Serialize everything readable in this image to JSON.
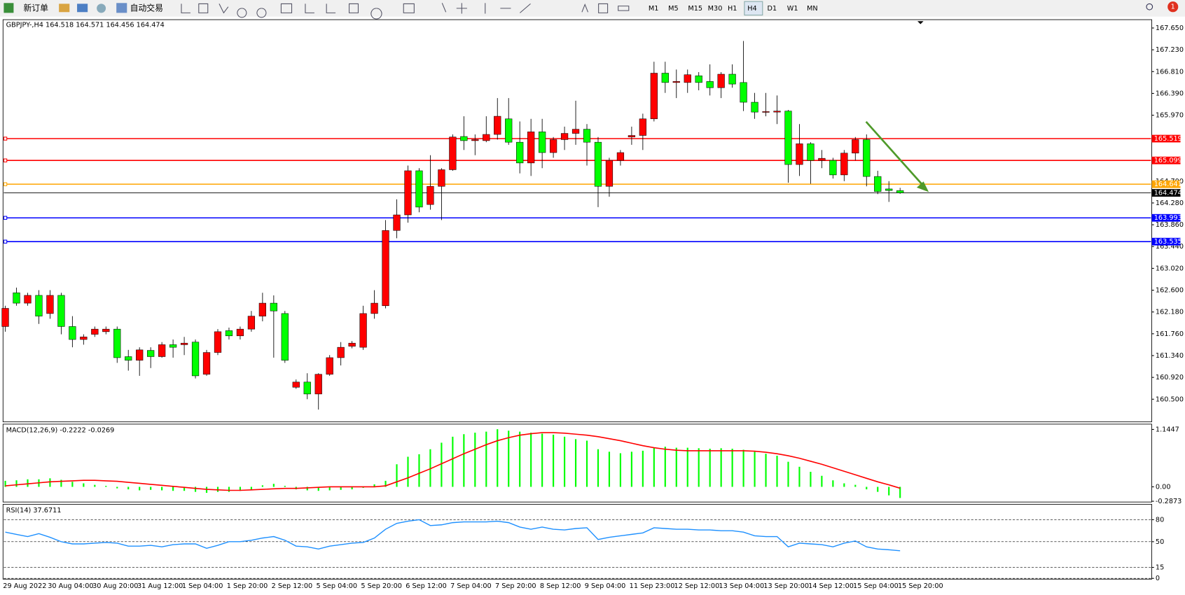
{
  "toolbar": {
    "order": "新订单",
    "autotrade": "自动交易",
    "timeframes": [
      "M1",
      "M5",
      "M15",
      "M30",
      "H1",
      "H4",
      "D1",
      "W1",
      "MN"
    ],
    "active": "H4",
    "badge": 1
  },
  "chart_data": [
    {
      "type": "candlestick",
      "symbol": "GBPJPY-,H4",
      "up_color": "#ff0000",
      "down_color": "#00ff00",
      "categories": [
        "29 Aug 2022",
        null,
        null,
        null,
        "30 Aug 04:00",
        null,
        null,
        null,
        "30 Aug 20:00",
        null,
        null,
        null,
        "31 Aug 12:00",
        null,
        null,
        null,
        "1 Sep 04:00",
        null,
        null,
        null,
        "1 Sep 20:00",
        null,
        null,
        null,
        "2 Sep 12:00",
        null,
        null,
        null,
        "5 Sep 04:00",
        null,
        null,
        null,
        "5 Sep 20:00",
        null,
        null,
        null,
        "6 Sep 12:00",
        null,
        null,
        null,
        "7 Sep 04:00",
        null,
        null,
        null,
        "7 Sep 20:00",
        null,
        null,
        null,
        "8 Sep 12:00",
        null,
        null,
        null,
        "9 Sep 04:00",
        null,
        null,
        null,
        "11 Sep 23:00",
        null,
        null,
        null,
        "12 Sep 12:00",
        null,
        null,
        null,
        "13 Sep 04:00",
        null,
        null,
        null,
        "13 Sep 20:00",
        null,
        null,
        null,
        "14 Sep 12:00",
        null,
        null,
        null,
        "15 Sep 04:00",
        null,
        null,
        null,
        "15 Sep 20:00"
      ],
      "open": [
        161.9,
        162.55,
        162.35,
        162.5,
        162.15,
        162.5,
        161.9,
        161.65,
        161.75,
        161.8,
        161.85,
        161.32,
        161.25,
        161.44,
        161.32,
        161.55,
        161.55,
        161.6,
        160.98,
        161.4,
        161.82,
        161.72,
        161.85,
        162.1,
        162.35,
        162.15,
        160.73,
        160.83,
        160.6,
        160.98,
        161.3,
        161.52,
        161.5,
        162.15,
        162.3,
        163.75,
        164.05,
        164.9,
        164.25,
        164.6,
        164.92,
        165.56,
        165.48,
        165.48,
        165.6,
        165.9,
        165.45,
        165.05,
        165.65,
        165.25,
        165.5,
        165.62,
        165.7,
        165.45,
        164.6,
        165.1,
        165.55,
        165.58,
        165.9,
        166.78,
        166.6,
        166.6,
        166.73,
        166.62,
        166.5,
        166.76,
        166.6,
        166.22,
        166.03,
        166.03,
        166.05,
        165.02,
        165.42,
        165.1,
        165.1,
        164.82,
        165.24,
        165.5,
        164.79,
        164.55,
        164.518
      ],
      "high": [
        162.3,
        162.65,
        162.55,
        162.6,
        162.6,
        162.55,
        162.1,
        161.75,
        161.9,
        161.9,
        161.9,
        161.45,
        161.5,
        161.5,
        161.6,
        161.65,
        161.7,
        161.65,
        161.45,
        161.85,
        161.88,
        161.9,
        162.2,
        162.55,
        162.5,
        162.2,
        160.88,
        161.0,
        161.0,
        161.35,
        161.6,
        161.62,
        162.3,
        162.6,
        163.95,
        164.35,
        165.0,
        164.95,
        165.2,
        164.95,
        165.6,
        165.95,
        165.6,
        165.95,
        166.3,
        166.3,
        165.85,
        165.9,
        165.9,
        165.55,
        165.75,
        166.25,
        165.8,
        165.55,
        165.15,
        165.3,
        165.75,
        166.0,
        167.0,
        167.0,
        166.85,
        166.85,
        166.8,
        166.95,
        166.8,
        166.95,
        167.4,
        166.4,
        166.4,
        166.35,
        166.07,
        165.8,
        165.45,
        165.3,
        165.15,
        165.3,
        165.55,
        165.6,
        164.9,
        164.7,
        164.571
      ],
      "low": [
        161.8,
        162.3,
        162.3,
        161.95,
        162.05,
        161.75,
        161.5,
        161.55,
        161.7,
        161.75,
        161.2,
        161.05,
        160.95,
        161.1,
        161.3,
        161.3,
        161.35,
        160.9,
        160.95,
        161.35,
        161.65,
        161.65,
        161.8,
        162.0,
        161.3,
        161.2,
        160.7,
        160.5,
        160.3,
        160.95,
        161.15,
        161.48,
        161.45,
        162.05,
        162.25,
        163.6,
        163.9,
        164.1,
        164.15,
        163.95,
        164.9,
        165.3,
        165.2,
        165.45,
        165.5,
        165.4,
        164.85,
        164.8,
        164.95,
        165.15,
        165.3,
        165.4,
        165.0,
        164.2,
        164.4,
        165.0,
        165.4,
        165.3,
        165.85,
        166.4,
        166.3,
        166.4,
        166.45,
        166.35,
        166.3,
        166.5,
        166.05,
        165.9,
        165.95,
        165.8,
        164.67,
        164.8,
        164.65,
        164.95,
        164.75,
        164.7,
        165.1,
        164.6,
        164.45,
        164.3,
        164.456
      ],
      "close": [
        162.25,
        162.35,
        162.5,
        162.1,
        162.5,
        161.9,
        161.65,
        161.7,
        161.85,
        161.85,
        161.3,
        161.25,
        161.45,
        161.32,
        161.55,
        161.5,
        161.58,
        160.95,
        161.4,
        161.8,
        161.72,
        161.85,
        162.1,
        162.35,
        162.2,
        161.25,
        160.83,
        160.6,
        160.98,
        161.3,
        161.5,
        161.58,
        162.15,
        162.35,
        163.75,
        164.05,
        164.9,
        164.2,
        164.6,
        164.92,
        165.55,
        165.48,
        165.5,
        165.6,
        165.95,
        165.45,
        165.05,
        165.65,
        165.25,
        165.5,
        165.62,
        165.7,
        165.45,
        164.6,
        165.1,
        165.25,
        165.58,
        165.9,
        166.78,
        166.6,
        166.62,
        166.75,
        166.6,
        166.5,
        166.76,
        166.57,
        166.22,
        166.03,
        166.04,
        166.05,
        165.02,
        165.42,
        165.1,
        165.14,
        164.82,
        165.24,
        165.5,
        164.79,
        164.5,
        164.52,
        164.474
      ],
      "ylim": [
        160.078,
        167.796
      ],
      "yticks": [
        {
          "value": 167.65,
          "label": "167.650"
        },
        {
          "value": 167.23,
          "label": "167.230"
        },
        {
          "value": 166.81,
          "label": "166.810"
        },
        {
          "value": 166.39,
          "label": "166.390"
        },
        {
          "value": 165.97,
          "label": "165.970"
        },
        {
          "value": 164.7,
          "label": "164.700"
        },
        {
          "value": 164.28,
          "label": "164.280"
        },
        {
          "value": 163.86,
          "label": "163.860"
        },
        {
          "value": 163.44,
          "label": "163.440"
        },
        {
          "value": 163.02,
          "label": "163.020"
        },
        {
          "value": 162.6,
          "label": "162.600"
        },
        {
          "value": 162.18,
          "label": "162.180"
        },
        {
          "value": 161.76,
          "label": "161.760"
        },
        {
          "value": 161.34,
          "label": "161.340"
        },
        {
          "value": 160.92,
          "label": "160.920"
        },
        {
          "value": 160.5,
          "label": "160.500"
        }
      ],
      "levels": [
        {
          "value": 165.519,
          "color": "#ff0000"
        },
        {
          "value": 165.099,
          "color": "#ff0000"
        },
        {
          "value": 164.641,
          "color": "#ffa500"
        },
        {
          "value": 163.993,
          "color": "#0000ff"
        },
        {
          "value": 163.535,
          "color": "#0000ff"
        }
      ],
      "bid": 164.474
    },
    {
      "type": "macd",
      "label": "MACD(12,26,9)",
      "color": "#00ff00",
      "signal_color": "#ff0000",
      "values": [
        0.12,
        0.13,
        0.15,
        0.15,
        0.17,
        0.14,
        0.1,
        0.07,
        0.04,
        0.02,
        -0.03,
        -0.05,
        -0.07,
        -0.06,
        -0.07,
        -0.08,
        -0.08,
        -0.1,
        -0.12,
        -0.1,
        -0.1,
        -0.08,
        -0.05,
        0.03,
        0.06,
        0.02,
        -0.05,
        -0.07,
        -0.08,
        -0.07,
        -0.06,
        -0.05,
        -0.02,
        0.05,
        0.12,
        0.45,
        0.6,
        0.65,
        0.75,
        0.88,
        1.0,
        1.05,
        1.08,
        1.1,
        1.15,
        1.12,
        1.1,
        1.08,
        1.06,
        1.04,
        1.0,
        0.95,
        0.92,
        0.75,
        0.7,
        0.67,
        0.7,
        0.72,
        0.78,
        0.8,
        0.78,
        0.78,
        0.77,
        0.76,
        0.77,
        0.76,
        0.74,
        0.7,
        0.66,
        0.62,
        0.5,
        0.4,
        0.3,
        0.22,
        0.13,
        0.07,
        0.04,
        -0.05,
        -0.1,
        -0.17,
        -0.2222
      ],
      "signal": [
        0.02,
        0.04,
        0.06,
        0.08,
        0.1,
        0.11,
        0.12,
        0.13,
        0.13,
        0.12,
        0.11,
        0.09,
        0.07,
        0.05,
        0.03,
        0.01,
        -0.01,
        -0.03,
        -0.05,
        -0.06,
        -0.07,
        -0.07,
        -0.06,
        -0.05,
        -0.04,
        -0.03,
        -0.03,
        -0.02,
        -0.01,
        0,
        0,
        0,
        0,
        0,
        0.02,
        0.1,
        0.18,
        0.27,
        0.36,
        0.46,
        0.56,
        0.66,
        0.75,
        0.84,
        0.92,
        0.98,
        1.03,
        1.06,
        1.08,
        1.08,
        1.07,
        1.05,
        1.03,
        1.0,
        0.96,
        0.92,
        0.87,
        0.82,
        0.78,
        0.75,
        0.73,
        0.72,
        0.72,
        0.72,
        0.72,
        0.72,
        0.72,
        0.71,
        0.69,
        0.66,
        0.62,
        0.57,
        0.51,
        0.45,
        0.38,
        0.31,
        0.24,
        0.17,
        0.1,
        0.04,
        -0.0269
      ],
      "ylim": [
        -0.2873,
        1.235
      ],
      "yticks": [
        1.1447,
        {
          "value": 0,
          "label": "0.00"
        },
        -0.2873
      ]
    },
    {
      "type": "line",
      "label": "RSI(14)",
      "color": "#1e90ff",
      "values": [
        63,
        60,
        57,
        61,
        56,
        50,
        47,
        47,
        48,
        49,
        48,
        44,
        44,
        45,
        43,
        46,
        47,
        47,
        41,
        45,
        50,
        50,
        52,
        55,
        57,
        52,
        44,
        43,
        40,
        44,
        46,
        48,
        49,
        55,
        67,
        75,
        78,
        80,
        72,
        73,
        76,
        77,
        77,
        77,
        78,
        76,
        70,
        67,
        70,
        67,
        66,
        68,
        69,
        53,
        56,
        58,
        60,
        62,
        69,
        68,
        67,
        67,
        66,
        66,
        65,
        65,
        63,
        58,
        57,
        57,
        43,
        48,
        47,
        46,
        43,
        48,
        51,
        43,
        40,
        39,
        37.6711
      ],
      "ylim": [
        0,
        100
      ],
      "yticks": [
        80,
        50,
        15,
        0
      ],
      "grid": true
    }
  ]
}
